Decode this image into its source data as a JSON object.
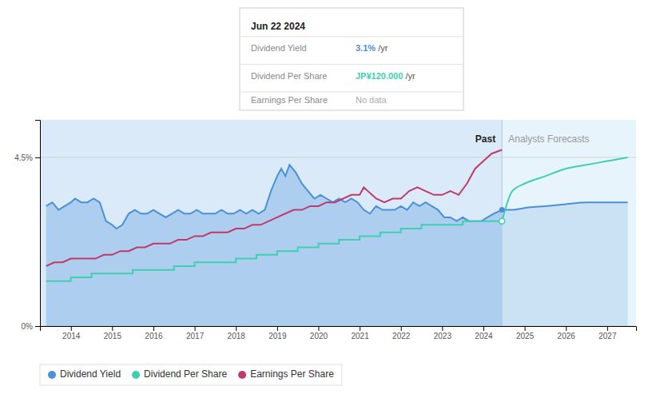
{
  "chart_data": {
    "type": "line",
    "xlim": [
      2013.25,
      2027.7
    ],
    "ylim": [
      0.0,
      0.055
    ],
    "xticks": [
      2014,
      2015,
      2016,
      2017,
      2018,
      2019,
      2020,
      2021,
      2022,
      2023,
      2024,
      2025,
      2026,
      2027
    ],
    "yticks": [
      {
        "value": 0.0,
        "label": "0%"
      },
      {
        "value": 0.045,
        "label": "4.5%"
      }
    ],
    "grid": true,
    "legend": "lower left",
    "divider_x": 2024.45,
    "regions": [
      {
        "label": "Past",
        "color": "#daeaf8"
      },
      {
        "label": "Analysts Forecasts",
        "color": "#e8f4fb"
      }
    ],
    "tooltip": {
      "title": "Jun 22 2024",
      "rows": [
        {
          "label": "Dividend Yield",
          "value": "3.1%",
          "unit": " /yr",
          "color": "#4a90d9"
        },
        {
          "label": "Dividend Per Share",
          "value": "JP¥120.000",
          "unit": " /yr",
          "color": "#3ecfb2"
        },
        {
          "label": "Earnings Per Share",
          "value": "No data"
        }
      ]
    },
    "series": [
      {
        "name": "Dividend Yield",
        "color": "#4a90d9",
        "type": "area",
        "x": [
          2013.4,
          2013.55,
          2013.7,
          2013.85,
          2014.0,
          2014.1,
          2014.25,
          2014.4,
          2014.55,
          2014.7,
          2014.85,
          2015.0,
          2015.1,
          2015.25,
          2015.4,
          2015.55,
          2015.7,
          2015.85,
          2016.0,
          2016.15,
          2016.3,
          2016.45,
          2016.6,
          2016.75,
          2016.9,
          2017.05,
          2017.2,
          2017.35,
          2017.5,
          2017.65,
          2017.8,
          2017.95,
          2018.1,
          2018.25,
          2018.4,
          2018.55,
          2018.7,
          2018.85,
          2019.0,
          2019.1,
          2019.2,
          2019.3,
          2019.45,
          2019.6,
          2019.75,
          2019.9,
          2020.05,
          2020.2,
          2020.35,
          2020.5,
          2020.65,
          2020.8,
          2020.95,
          2021.1,
          2021.25,
          2021.4,
          2021.55,
          2021.7,
          2021.85,
          2022.0,
          2022.15,
          2022.3,
          2022.45,
          2022.6,
          2022.75,
          2022.9,
          2023.05,
          2023.2,
          2023.35,
          2023.5,
          2023.65,
          2023.8,
          2023.95,
          2024.1,
          2024.25,
          2024.45
        ],
        "values": [
          0.032,
          0.033,
          0.031,
          0.032,
          0.033,
          0.034,
          0.033,
          0.033,
          0.034,
          0.033,
          0.028,
          0.027,
          0.026,
          0.027,
          0.03,
          0.031,
          0.03,
          0.03,
          0.031,
          0.03,
          0.029,
          0.03,
          0.031,
          0.03,
          0.03,
          0.031,
          0.03,
          0.03,
          0.03,
          0.031,
          0.03,
          0.03,
          0.031,
          0.03,
          0.031,
          0.03,
          0.031,
          0.036,
          0.04,
          0.042,
          0.04,
          0.043,
          0.041,
          0.038,
          0.036,
          0.034,
          0.035,
          0.034,
          0.033,
          0.034,
          0.033,
          0.034,
          0.033,
          0.031,
          0.03,
          0.032,
          0.031,
          0.031,
          0.031,
          0.032,
          0.031,
          0.033,
          0.032,
          0.033,
          0.032,
          0.031,
          0.029,
          0.029,
          0.028,
          0.029,
          0.028,
          0.028,
          0.028,
          0.029,
          0.03,
          0.031
        ],
        "forecast_x": [
          2024.45,
          2024.7,
          2025.0,
          2025.5,
          2026.0,
          2026.5,
          2027.0,
          2027.5
        ],
        "forecast_values": [
          0.031,
          0.031,
          0.0315,
          0.032,
          0.0325,
          0.033,
          0.033,
          0.033
        ]
      },
      {
        "name": "Dividend Per Share",
        "color": "#3ecfb2",
        "type": "step",
        "x": [
          2013.4,
          2013.75,
          2014.0,
          2014.25,
          2014.5,
          2014.75,
          2015.0,
          2015.25,
          2015.5,
          2015.75,
          2016.0,
          2016.25,
          2016.5,
          2016.75,
          2017.0,
          2017.25,
          2017.5,
          2017.75,
          2018.0,
          2018.25,
          2018.5,
          2018.75,
          2019.0,
          2019.25,
          2019.5,
          2019.75,
          2020.0,
          2020.25,
          2020.5,
          2020.75,
          2021.0,
          2021.25,
          2021.5,
          2021.75,
          2022.0,
          2022.25,
          2022.5,
          2022.75,
          2023.0,
          2023.25,
          2023.5,
          2023.75,
          2024.0,
          2024.25,
          2024.45
        ],
        "values": [
          0.012,
          0.012,
          0.013,
          0.013,
          0.014,
          0.014,
          0.014,
          0.014,
          0.015,
          0.015,
          0.015,
          0.015,
          0.016,
          0.016,
          0.017,
          0.017,
          0.017,
          0.017,
          0.018,
          0.018,
          0.019,
          0.019,
          0.02,
          0.02,
          0.021,
          0.021,
          0.022,
          0.022,
          0.023,
          0.023,
          0.024,
          0.024,
          0.025,
          0.025,
          0.026,
          0.026,
          0.027,
          0.027,
          0.027,
          0.027,
          0.028,
          0.028,
          0.028,
          0.028,
          0.028
        ],
        "forecast_x": [
          2024.45,
          2024.7,
          2025.0,
          2025.5,
          2026.0,
          2026.5,
          2027.0,
          2027.5
        ],
        "forecast_values": [
          0.028,
          0.036,
          0.038,
          0.04,
          0.042,
          0.043,
          0.044,
          0.045
        ]
      },
      {
        "name": "Earnings Per Share",
        "color": "#c0396b",
        "type": "line",
        "x": [
          2013.4,
          2013.6,
          2013.8,
          2014.0,
          2014.2,
          2014.4,
          2014.6,
          2014.8,
          2015.0,
          2015.2,
          2015.4,
          2015.6,
          2015.8,
          2016.0,
          2016.2,
          2016.4,
          2016.6,
          2016.8,
          2017.0,
          2017.2,
          2017.4,
          2017.6,
          2017.8,
          2018.0,
          2018.2,
          2018.4,
          2018.6,
          2018.8,
          2019.0,
          2019.2,
          2019.4,
          2019.6,
          2019.8,
          2020.0,
          2020.2,
          2020.4,
          2020.6,
          2020.8,
          2021.0,
          2021.1,
          2021.2,
          2021.3,
          2021.4,
          2021.6,
          2021.8,
          2022.0,
          2022.2,
          2022.4,
          2022.6,
          2022.8,
          2023.0,
          2023.2,
          2023.4,
          2023.6,
          2023.8,
          2024.0,
          2024.2,
          2024.45
        ],
        "values": [
          0.016,
          0.017,
          0.017,
          0.018,
          0.018,
          0.018,
          0.018,
          0.019,
          0.019,
          0.02,
          0.02,
          0.021,
          0.021,
          0.022,
          0.022,
          0.022,
          0.023,
          0.023,
          0.024,
          0.024,
          0.025,
          0.025,
          0.025,
          0.026,
          0.026,
          0.027,
          0.027,
          0.028,
          0.029,
          0.03,
          0.031,
          0.031,
          0.032,
          0.032,
          0.033,
          0.033,
          0.034,
          0.035,
          0.035,
          0.037,
          0.036,
          0.035,
          0.034,
          0.033,
          0.034,
          0.034,
          0.036,
          0.037,
          0.036,
          0.035,
          0.035,
          0.036,
          0.035,
          0.038,
          0.042,
          0.044,
          0.046,
          0.047
        ]
      }
    ]
  }
}
